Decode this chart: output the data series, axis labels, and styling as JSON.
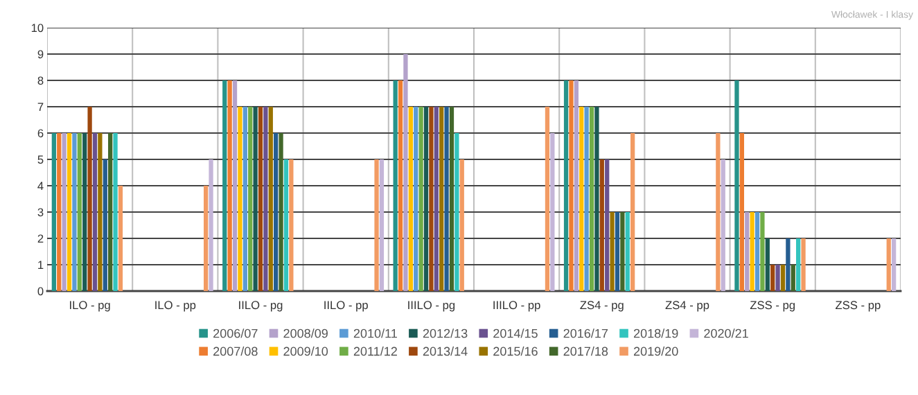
{
  "chart_data": {
    "type": "bar",
    "categories": [
      "ILO - pg",
      "ILO - pp",
      "IILO - pg",
      "IILO - pp",
      "IIILO - pg",
      "IIILO - pp",
      "ZS4 - pg",
      "ZS4 - pp",
      "ZSS - pg",
      "ZSS - pp"
    ],
    "series": [
      {
        "name": "2006/07",
        "color": "#26938a",
        "values": [
          6,
          null,
          8,
          null,
          8,
          null,
          8,
          null,
          8,
          null
        ]
      },
      {
        "name": "2007/08",
        "color": "#ed7d31",
        "values": [
          6,
          null,
          8,
          null,
          8,
          null,
          8,
          null,
          6,
          null
        ]
      },
      {
        "name": "2008/09",
        "color": "#b4a2cb",
        "values": [
          6,
          null,
          8,
          null,
          9,
          null,
          8,
          null,
          3,
          null
        ]
      },
      {
        "name": "2009/10",
        "color": "#ffc000",
        "values": [
          6,
          null,
          7,
          null,
          7,
          null,
          7,
          null,
          3,
          null
        ]
      },
      {
        "name": "2010/11",
        "color": "#5b9bd5",
        "values": [
          6,
          null,
          7,
          null,
          7,
          null,
          7,
          null,
          3,
          null
        ]
      },
      {
        "name": "2011/12",
        "color": "#70ad47",
        "values": [
          6,
          null,
          7,
          null,
          7,
          null,
          7,
          null,
          3,
          null
        ]
      },
      {
        "name": "2012/13",
        "color": "#1b5b55",
        "values": [
          6,
          null,
          7,
          null,
          7,
          null,
          7,
          null,
          2,
          null
        ]
      },
      {
        "name": "2013/14",
        "color": "#9e480e",
        "values": [
          7,
          null,
          7,
          null,
          7,
          null,
          5,
          null,
          1,
          null
        ]
      },
      {
        "name": "2014/15",
        "color": "#6a5290",
        "values": [
          6,
          null,
          7,
          null,
          7,
          null,
          5,
          null,
          1,
          null
        ]
      },
      {
        "name": "2015/16",
        "color": "#997300",
        "values": [
          6,
          null,
          7,
          null,
          7,
          null,
          3,
          null,
          1,
          null
        ]
      },
      {
        "name": "2016/17",
        "color": "#255e91",
        "values": [
          5,
          null,
          6,
          null,
          7,
          null,
          3,
          null,
          2,
          null
        ]
      },
      {
        "name": "2017/18",
        "color": "#43682b",
        "values": [
          6,
          null,
          6,
          null,
          7,
          null,
          3,
          null,
          1,
          null
        ]
      },
      {
        "name": "2018/19",
        "color": "#33c4be",
        "values": [
          6,
          null,
          5,
          null,
          6,
          null,
          3,
          null,
          2,
          null
        ]
      },
      {
        "name": "2019/20",
        "color": "#f29b63",
        "values": [
          4,
          4,
          5,
          5,
          5,
          7,
          6,
          6,
          2,
          2
        ]
      },
      {
        "name": "2020/21",
        "color": "#c4b5d8",
        "values": [
          null,
          5,
          null,
          5,
          null,
          6,
          null,
          5,
          null,
          2
        ]
      }
    ],
    "ylim": [
      0,
      10
    ],
    "yticks": [
      0,
      1,
      2,
      3,
      4,
      5,
      6,
      7,
      8,
      9,
      10
    ],
    "grid": true,
    "legend": "bottom",
    "annotations": [
      "Włocławek - I klasy"
    ]
  }
}
